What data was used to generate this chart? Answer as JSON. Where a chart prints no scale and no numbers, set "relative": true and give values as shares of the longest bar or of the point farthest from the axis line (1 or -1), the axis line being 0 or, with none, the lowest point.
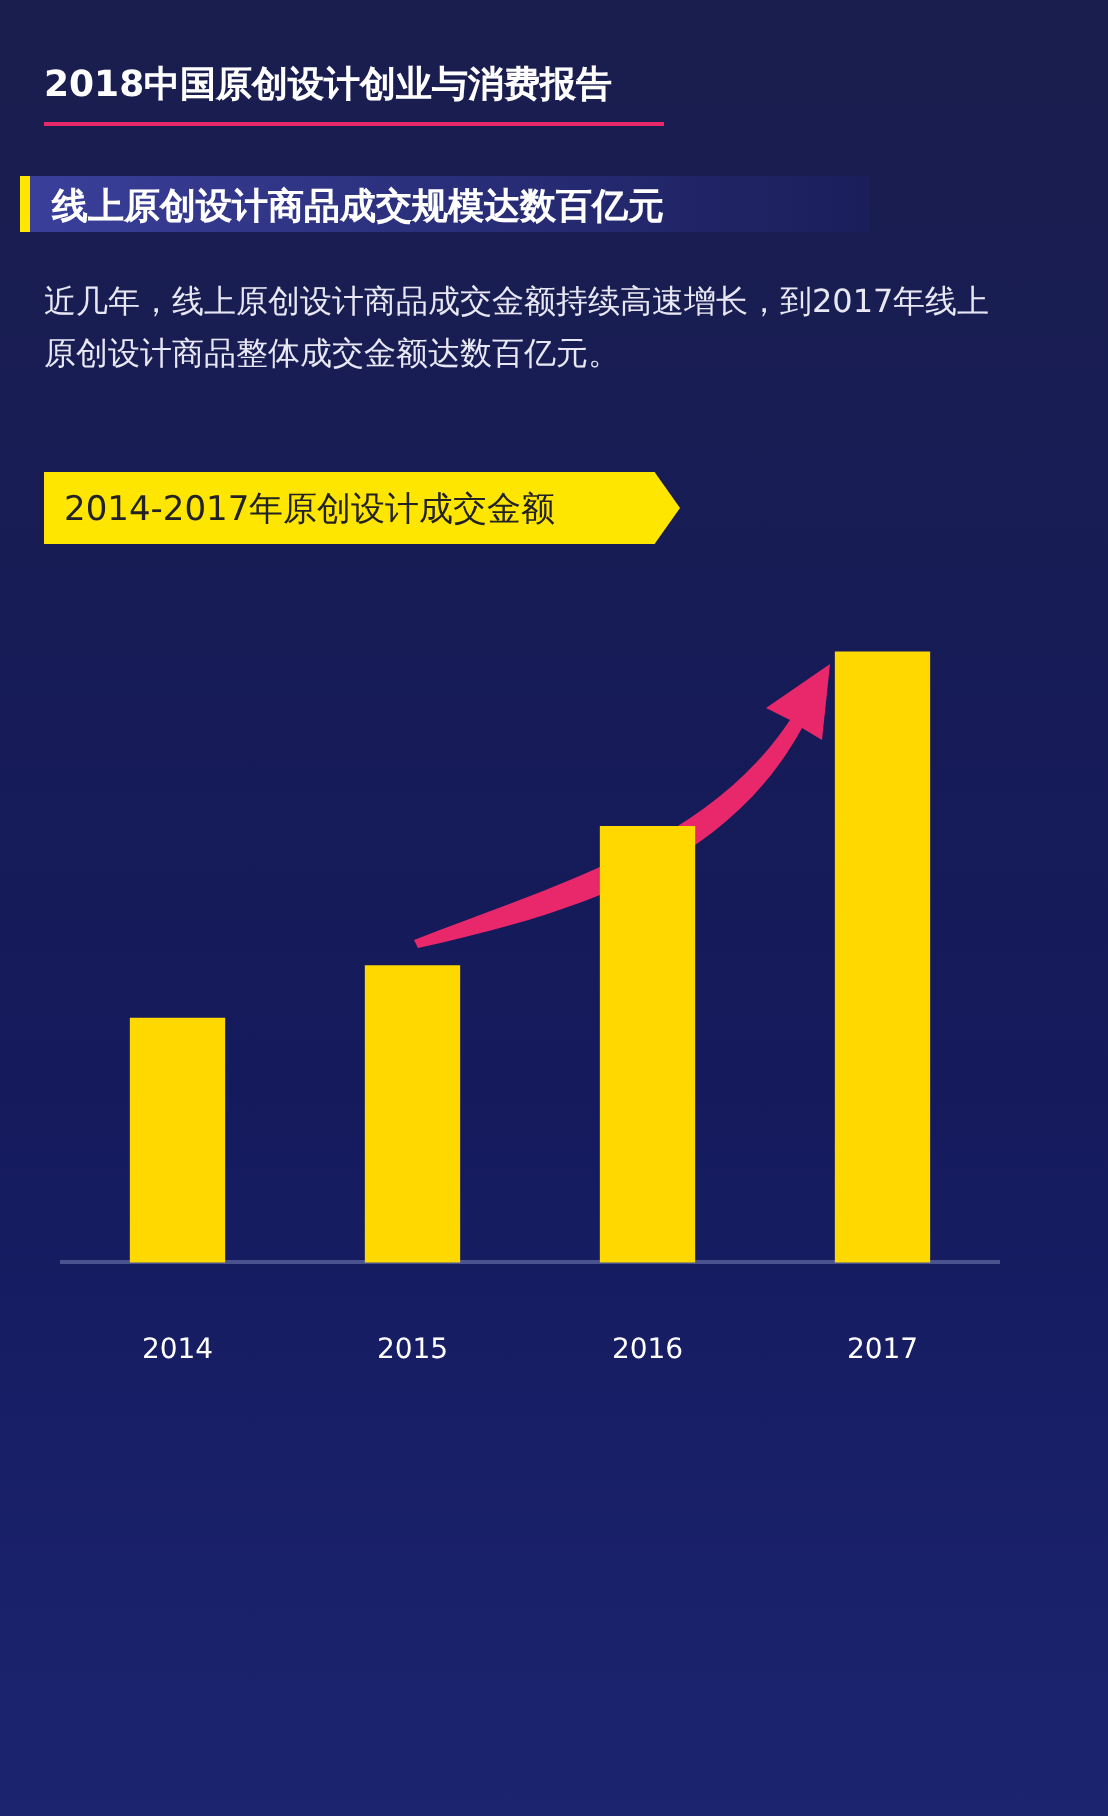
{
  "chart_data": {
    "type": "bar",
    "title": "2018中国原创设计创业与消费报告",
    "subtitle": "线上原创设计商品成交规模达数百亿元",
    "annotations": [
      "近几年，线上原创设计商品成交金额持续高速增长，到2017年线上原创设计商品整体成交金额达数百亿元。",
      "2014-2017年原创设计成交金额"
    ],
    "categories": [
      "2014",
      "2015",
      "2016",
      "2017"
    ],
    "values": [
      0.4,
      0.486,
      0.714,
      1
    ],
    "color": "#ffd800",
    "relative": true,
    "grid": false,
    "legend": false
  }
}
